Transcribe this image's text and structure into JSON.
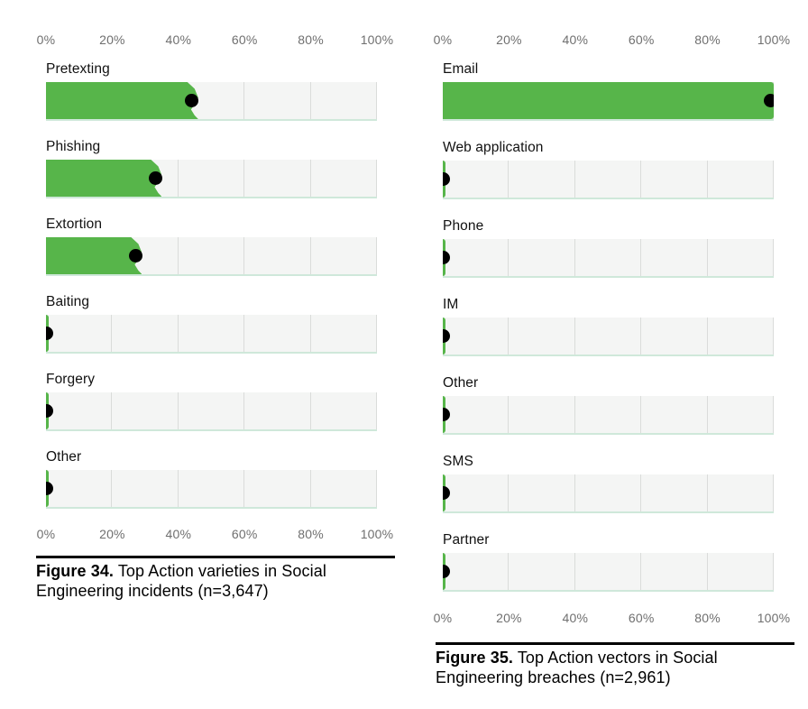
{
  "colors": {
    "bar_green": "#57b54a",
    "track_background": "#f4f5f4",
    "gridline": "#dadcda",
    "track_bottom_border": "#cfe8da",
    "dot": "#000000",
    "axis_text": "#6f6f6f",
    "category_text": "#111111",
    "caption_text": "#000000",
    "caption_rule": "#000000",
    "page_background": "#ffffff"
  },
  "chart_data": [
    {
      "type": "bar",
      "orientation": "horizontal",
      "figure_label": "Figure 34.",
      "caption_text": "Top Action varieties in Social Engineering incidents (n=3,647)",
      "n": "3,647",
      "categories": [
        "Pretexting",
        "Phishing",
        "Extortion",
        "Baiting",
        "Forgery",
        "Other"
      ],
      "values": [
        44,
        33,
        27,
        1,
        1,
        1
      ],
      "value_unit": "%",
      "xlim": [
        0,
        100
      ],
      "x_tick_labels": [
        "0%",
        "20%",
        "40%",
        "60%",
        "80%",
        "100%"
      ],
      "x_axis_shown": [
        "top",
        "bottom"
      ],
      "grid": "vertical",
      "legend": "none",
      "marker": "black dot at value"
    },
    {
      "type": "bar",
      "orientation": "horizontal",
      "figure_label": "Figure 35.",
      "caption_text": "Top Action vectors in Social Engineering breaches (n=2,961)",
      "n": "2,961",
      "categories": [
        "Email",
        "Web application",
        "Phone",
        "IM",
        "Other",
        "SMS",
        "Partner"
      ],
      "values": [
        99,
        1,
        1,
        1,
        1,
        1,
        1
      ],
      "value_unit": "%",
      "xlim": [
        0,
        100
      ],
      "x_tick_labels": [
        "0%",
        "20%",
        "40%",
        "60%",
        "80%",
        "100%"
      ],
      "x_axis_shown": [
        "top",
        "bottom"
      ],
      "grid": "vertical",
      "legend": "none",
      "marker": "black dot at value"
    }
  ]
}
